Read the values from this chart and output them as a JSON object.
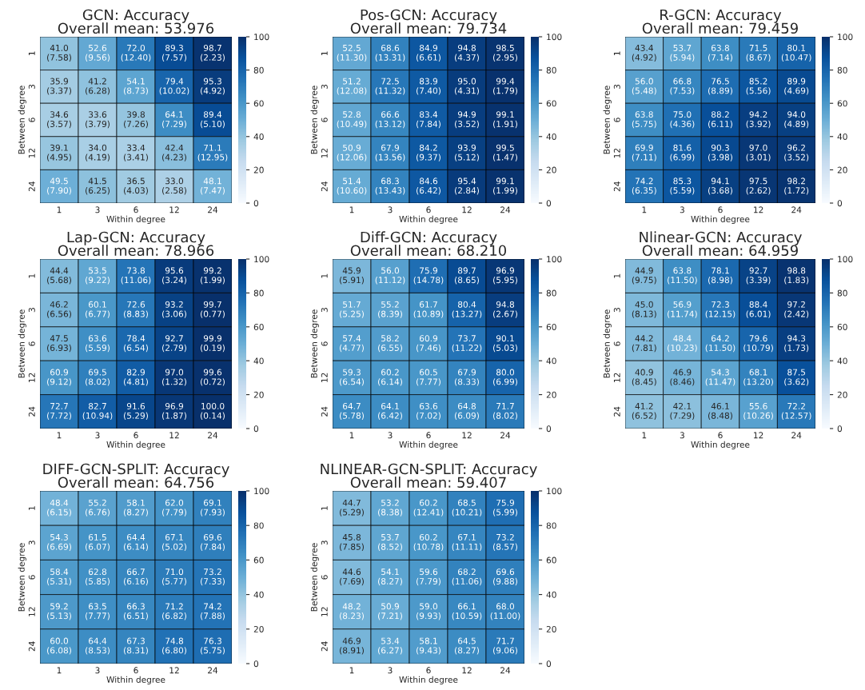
{
  "chart_data": [
    {
      "type": "heatmap",
      "title": "GCN: Accuracy",
      "subtitle": "Overall mean: 53.976",
      "xlabel": "Within degree",
      "ylabel": "Between degree",
      "categories": [
        "1",
        "3",
        "6",
        "12",
        "24"
      ],
      "y_categories": [
        "1",
        "3",
        "6",
        "12",
        "24"
      ],
      "clim": [
        0,
        100
      ],
      "cticks": [
        0,
        20,
        40,
        60,
        80,
        100
      ],
      "cells": [
        [
          41.0,
          52.6,
          72.0,
          89.3,
          98.7
        ],
        [
          35.9,
          41.2,
          54.1,
          79.4,
          95.3
        ],
        [
          34.6,
          33.6,
          39.8,
          64.1,
          89.4
        ],
        [
          39.1,
          34.0,
          33.4,
          42.4,
          71.1
        ],
        [
          49.5,
          41.5,
          36.5,
          33.0,
          48.1
        ]
      ],
      "cell_labels": [
        [
          "41.0\n(7.58)",
          "52.6\n(9.56)",
          "72.0\n(12.40)",
          "89.3\n(7.57)",
          "98.7\n(2.23)"
        ],
        [
          "35.9\n(3.37)",
          "41.2\n(6.28)",
          "54.1\n(8.73)",
          "79.4\n(10.02)",
          "95.3\n(4.92)"
        ],
        [
          "34.6\n(3.57)",
          "33.6\n(3.79)",
          "39.8\n(7.26)",
          "64.1\n(7.29)",
          "89.4\n(5.10)"
        ],
        [
          "39.1\n(4.95)",
          "34.0\n(4.19)",
          "33.4\n(3.41)",
          "42.4\n(4.23)",
          "71.1\n(12.95)"
        ],
        [
          "49.5\n(7.90)",
          "41.5\n(6.25)",
          "36.5\n(4.03)",
          "33.0\n(2.58)",
          "48.1\n(7.47)"
        ]
      ]
    },
    {
      "type": "heatmap",
      "title": "Pos-GCN: Accuracy",
      "subtitle": "Overall mean: 79.734",
      "xlabel": "Within degree",
      "ylabel": "Between degree",
      "categories": [
        "1",
        "3",
        "6",
        "12",
        "24"
      ],
      "y_categories": [
        "1",
        "3",
        "6",
        "12",
        "24"
      ],
      "clim": [
        0,
        100
      ],
      "cticks": [
        0,
        20,
        40,
        60,
        80,
        100
      ],
      "cells": [
        [
          52.5,
          68.6,
          84.9,
          94.8,
          98.5
        ],
        [
          51.2,
          72.5,
          83.9,
          95.0,
          99.4
        ],
        [
          52.8,
          66.6,
          83.4,
          94.9,
          99.1
        ],
        [
          50.9,
          67.9,
          84.2,
          93.9,
          99.5
        ],
        [
          51.4,
          68.3,
          84.6,
          95.4,
          99.1
        ]
      ],
      "cell_labels": [
        [
          "52.5\n(11.30)",
          "68.6\n(13.31)",
          "84.9\n(6.61)",
          "94.8\n(4.37)",
          "98.5\n(2.95)"
        ],
        [
          "51.2\n(12.08)",
          "72.5\n(11.32)",
          "83.9\n(7.40)",
          "95.0\n(4.31)",
          "99.4\n(1.79)"
        ],
        [
          "52.8\n(10.49)",
          "66.6\n(13.12)",
          "83.4\n(7.84)",
          "94.9\n(3.52)",
          "99.1\n(1.91)"
        ],
        [
          "50.9\n(12.06)",
          "67.9\n(13.56)",
          "84.2\n(9.37)",
          "93.9\n(5.12)",
          "99.5\n(1.47)"
        ],
        [
          "51.4\n(10.60)",
          "68.3\n(13.43)",
          "84.6\n(6.42)",
          "95.4\n(2.84)",
          "99.1\n(1.99)"
        ]
      ]
    },
    {
      "type": "heatmap",
      "title": "R-GCN: Accuracy",
      "subtitle": "Overall mean: 79.459",
      "xlabel": "Within degree",
      "ylabel": "Between degree",
      "categories": [
        "1",
        "3",
        "6",
        "12",
        "24"
      ],
      "y_categories": [
        "1",
        "3",
        "6",
        "12",
        "24"
      ],
      "clim": [
        0,
        100
      ],
      "cticks": [
        0,
        20,
        40,
        60,
        80,
        100
      ],
      "cells": [
        [
          43.4,
          53.7,
          63.8,
          71.5,
          80.1
        ],
        [
          56.0,
          66.8,
          76.5,
          85.2,
          89.9
        ],
        [
          63.8,
          75.0,
          88.2,
          94.2,
          94.0
        ],
        [
          69.9,
          81.6,
          90.3,
          97.0,
          96.2
        ],
        [
          74.2,
          85.3,
          94.1,
          97.5,
          98.2
        ]
      ],
      "cell_labels": [
        [
          "43.4\n(4.92)",
          "53.7\n(5.94)",
          "63.8\n(7.14)",
          "71.5\n(8.67)",
          "80.1\n(10.47)"
        ],
        [
          "56.0\n(5.48)",
          "66.8\n(7.53)",
          "76.5\n(8.89)",
          "85.2\n(5.56)",
          "89.9\n(4.69)"
        ],
        [
          "63.8\n(5.75)",
          "75.0\n(4.36)",
          "88.2\n(6.11)",
          "94.2\n(3.92)",
          "94.0\n(4.89)"
        ],
        [
          "69.9\n(7.11)",
          "81.6\n(6.99)",
          "90.3\n(3.98)",
          "97.0\n(3.01)",
          "96.2\n(3.52)"
        ],
        [
          "74.2\n(6.35)",
          "85.3\n(5.59)",
          "94.1\n(3.68)",
          "97.5\n(2.62)",
          "98.2\n(1.72)"
        ]
      ]
    },
    {
      "type": "heatmap",
      "title": "Lap-GCN: Accuracy",
      "subtitle": "Overall mean: 78.966",
      "xlabel": "Within degree",
      "ylabel": "Between degree",
      "categories": [
        "1",
        "3",
        "6",
        "12",
        "24"
      ],
      "y_categories": [
        "1",
        "3",
        "6",
        "12",
        "24"
      ],
      "clim": [
        0,
        100
      ],
      "cticks": [
        0,
        20,
        40,
        60,
        80,
        100
      ],
      "cells": [
        [
          44.4,
          53.5,
          73.8,
          95.6,
          99.2
        ],
        [
          46.2,
          60.1,
          72.6,
          93.2,
          99.7
        ],
        [
          47.5,
          63.6,
          78.4,
          92.7,
          99.9
        ],
        [
          60.9,
          69.5,
          82.9,
          97.0,
          99.6
        ],
        [
          72.7,
          82.7,
          91.6,
          96.9,
          100.0
        ]
      ],
      "cell_labels": [
        [
          "44.4\n(5.68)",
          "53.5\n(9.22)",
          "73.8\n(11.06)",
          "95.6\n(3.24)",
          "99.2\n(1.99)"
        ],
        [
          "46.2\n(6.56)",
          "60.1\n(6.77)",
          "72.6\n(8.83)",
          "93.2\n(3.06)",
          "99.7\n(0.77)"
        ],
        [
          "47.5\n(6.93)",
          "63.6\n(5.59)",
          "78.4\n(6.54)",
          "92.7\n(2.79)",
          "99.9\n(0.19)"
        ],
        [
          "60.9\n(9.12)",
          "69.5\n(8.02)",
          "82.9\n(4.81)",
          "97.0\n(1.32)",
          "99.6\n(0.72)"
        ],
        [
          "72.7\n(7.72)",
          "82.7\n(10.94)",
          "91.6\n(5.29)",
          "96.9\n(1.87)",
          "100.0\n(0.14)"
        ]
      ]
    },
    {
      "type": "heatmap",
      "title": "Diff-GCN: Accuracy",
      "subtitle": "Overall mean: 68.210",
      "xlabel": "Within degree",
      "ylabel": "Between degree",
      "categories": [
        "1",
        "3",
        "6",
        "12",
        "24"
      ],
      "y_categories": [
        "1",
        "3",
        "6",
        "12",
        "24"
      ],
      "clim": [
        0,
        100
      ],
      "cticks": [
        0,
        20,
        40,
        60,
        80,
        100
      ],
      "cells": [
        [
          45.9,
          56.0,
          75.9,
          89.7,
          96.9
        ],
        [
          51.7,
          55.2,
          61.7,
          80.4,
          94.8
        ],
        [
          57.4,
          58.2,
          60.9,
          73.7,
          90.1
        ],
        [
          59.3,
          60.2,
          60.5,
          67.9,
          80.0
        ],
        [
          64.7,
          64.1,
          63.6,
          64.8,
          71.7
        ]
      ],
      "cell_labels": [
        [
          "45.9\n(5.91)",
          "56.0\n(11.12)",
          "75.9\n(14.78)",
          "89.7\n(8.65)",
          "96.9\n(5.95)"
        ],
        [
          "51.7\n(5.25)",
          "55.2\n(8.39)",
          "61.7\n(10.89)",
          "80.4\n(13.27)",
          "94.8\n(2.67)"
        ],
        [
          "57.4\n(4.77)",
          "58.2\n(6.55)",
          "60.9\n(7.46)",
          "73.7\n(11.22)",
          "90.1\n(5.03)"
        ],
        [
          "59.3\n(6.54)",
          "60.2\n(6.14)",
          "60.5\n(7.77)",
          "67.9\n(8.33)",
          "80.0\n(6.99)"
        ],
        [
          "64.7\n(5.78)",
          "64.1\n(6.42)",
          "63.6\n(7.02)",
          "64.8\n(6.09)",
          "71.7\n(8.02)"
        ]
      ]
    },
    {
      "type": "heatmap",
      "title": "Nlinear-GCN: Accuracy",
      "subtitle": "Overall mean: 64.959",
      "xlabel": "Within degree",
      "ylabel": "Between degree",
      "categories": [
        "1",
        "3",
        "6",
        "12",
        "24"
      ],
      "y_categories": [
        "1",
        "3",
        "6",
        "12",
        "24"
      ],
      "clim": [
        0,
        100
      ],
      "cticks": [
        0,
        20,
        40,
        60,
        80,
        100
      ],
      "cells": [
        [
          44.9,
          63.8,
          78.1,
          92.7,
          98.8
        ],
        [
          45.0,
          56.9,
          72.3,
          88.4,
          97.2
        ],
        [
          44.2,
          48.4,
          64.2,
          79.6,
          94.3
        ],
        [
          40.9,
          46.9,
          54.3,
          68.1,
          87.5
        ],
        [
          41.2,
          42.1,
          46.1,
          55.6,
          72.2
        ]
      ],
      "cell_labels": [
        [
          "44.9\n(9.75)",
          "63.8\n(11.50)",
          "78.1\n(8.98)",
          "92.7\n(3.39)",
          "98.8\n(1.83)"
        ],
        [
          "45.0\n(8.13)",
          "56.9\n(11.74)",
          "72.3\n(12.15)",
          "88.4\n(6.01)",
          "97.2\n(2.42)"
        ],
        [
          "44.2\n(7.81)",
          "48.4\n(10.23)",
          "64.2\n(11.50)",
          "79.6\n(10.79)",
          "94.3\n(1.73)"
        ],
        [
          "40.9\n(8.45)",
          "46.9\n(8.46)",
          "54.3\n(11.47)",
          "68.1\n(13.20)",
          "87.5\n(3.62)"
        ],
        [
          "41.2\n(6.52)",
          "42.1\n(7.29)",
          "46.1\n(8.48)",
          "55.6\n(10.26)",
          "72.2\n(12.57)"
        ]
      ]
    },
    {
      "type": "heatmap",
      "title": "DIFF-GCN-SPLIT: Accuracy",
      "subtitle": "Overall mean: 64.756",
      "xlabel": "Within degree",
      "ylabel": "Between degree",
      "categories": [
        "1",
        "3",
        "6",
        "12",
        "24"
      ],
      "y_categories": [
        "1",
        "3",
        "6",
        "12",
        "24"
      ],
      "clim": [
        0,
        100
      ],
      "cticks": [
        0,
        20,
        40,
        60,
        80,
        100
      ],
      "cells": [
        [
          48.4,
          55.2,
          58.1,
          62.0,
          69.1
        ],
        [
          54.3,
          61.5,
          64.4,
          67.1,
          69.6
        ],
        [
          58.4,
          62.8,
          66.7,
          71.0,
          73.2
        ],
        [
          59.2,
          63.5,
          66.3,
          71.2,
          74.2
        ],
        [
          60.0,
          64.4,
          67.3,
          74.8,
          76.3
        ]
      ],
      "cell_labels": [
        [
          "48.4\n(6.15)",
          "55.2\n(6.76)",
          "58.1\n(8.27)",
          "62.0\n(7.79)",
          "69.1\n(7.93)"
        ],
        [
          "54.3\n(6.69)",
          "61.5\n(6.07)",
          "64.4\n(6.14)",
          "67.1\n(5.02)",
          "69.6\n(7.84)"
        ],
        [
          "58.4\n(5.31)",
          "62.8\n(5.85)",
          "66.7\n(6.16)",
          "71.0\n(5.77)",
          "73.2\n(7.33)"
        ],
        [
          "59.2\n(5.13)",
          "63.5\n(7.77)",
          "66.3\n(6.51)",
          "71.2\n(6.82)",
          "74.2\n(7.88)"
        ],
        [
          "60.0\n(6.08)",
          "64.4\n(8.53)",
          "67.3\n(8.31)",
          "74.8\n(6.80)",
          "76.3\n(5.75)"
        ]
      ]
    },
    {
      "type": "heatmap",
      "title": "NLINEAR-GCN-SPLIT: Accuracy",
      "subtitle": "Overall mean: 59.407",
      "xlabel": "Within degree",
      "ylabel": "Between degree",
      "categories": [
        "1",
        "3",
        "6",
        "12",
        "24"
      ],
      "y_categories": [
        "1",
        "3",
        "6",
        "12",
        "24"
      ],
      "clim": [
        0,
        100
      ],
      "cticks": [
        0,
        20,
        40,
        60,
        80,
        100
      ],
      "cells": [
        [
          44.7,
          53.2,
          60.2,
          68.5,
          75.9
        ],
        [
          45.8,
          53.7,
          60.2,
          67.1,
          73.2
        ],
        [
          44.6,
          54.1,
          59.6,
          68.2,
          69.6
        ],
        [
          48.2,
          50.9,
          59.0,
          66.1,
          68.0
        ],
        [
          46.9,
          53.4,
          58.1,
          64.5,
          71.7
        ]
      ],
      "cell_labels": [
        [
          "44.7\n(5.29)",
          "53.2\n(8.38)",
          "60.2\n(12.41)",
          "68.5\n(10.21)",
          "75.9\n(5.99)"
        ],
        [
          "45.8\n(7.85)",
          "53.7\n(8.52)",
          "60.2\n(10.78)",
          "67.1\n(11.11)",
          "73.2\n(8.57)"
        ],
        [
          "44.6\n(7.69)",
          "54.1\n(8.27)",
          "59.6\n(7.79)",
          "68.2\n(11.06)",
          "69.6\n(9.88)"
        ],
        [
          "48.2\n(8.23)",
          "50.9\n(7.21)",
          "59.0\n(9.93)",
          "66.1\n(10.59)",
          "68.0\n(11.00)"
        ],
        [
          "46.9\n(8.91)",
          "53.4\n(6.27)",
          "58.1\n(9.43)",
          "64.5\n(8.27)",
          "71.7\n(9.06)"
        ]
      ]
    }
  ]
}
